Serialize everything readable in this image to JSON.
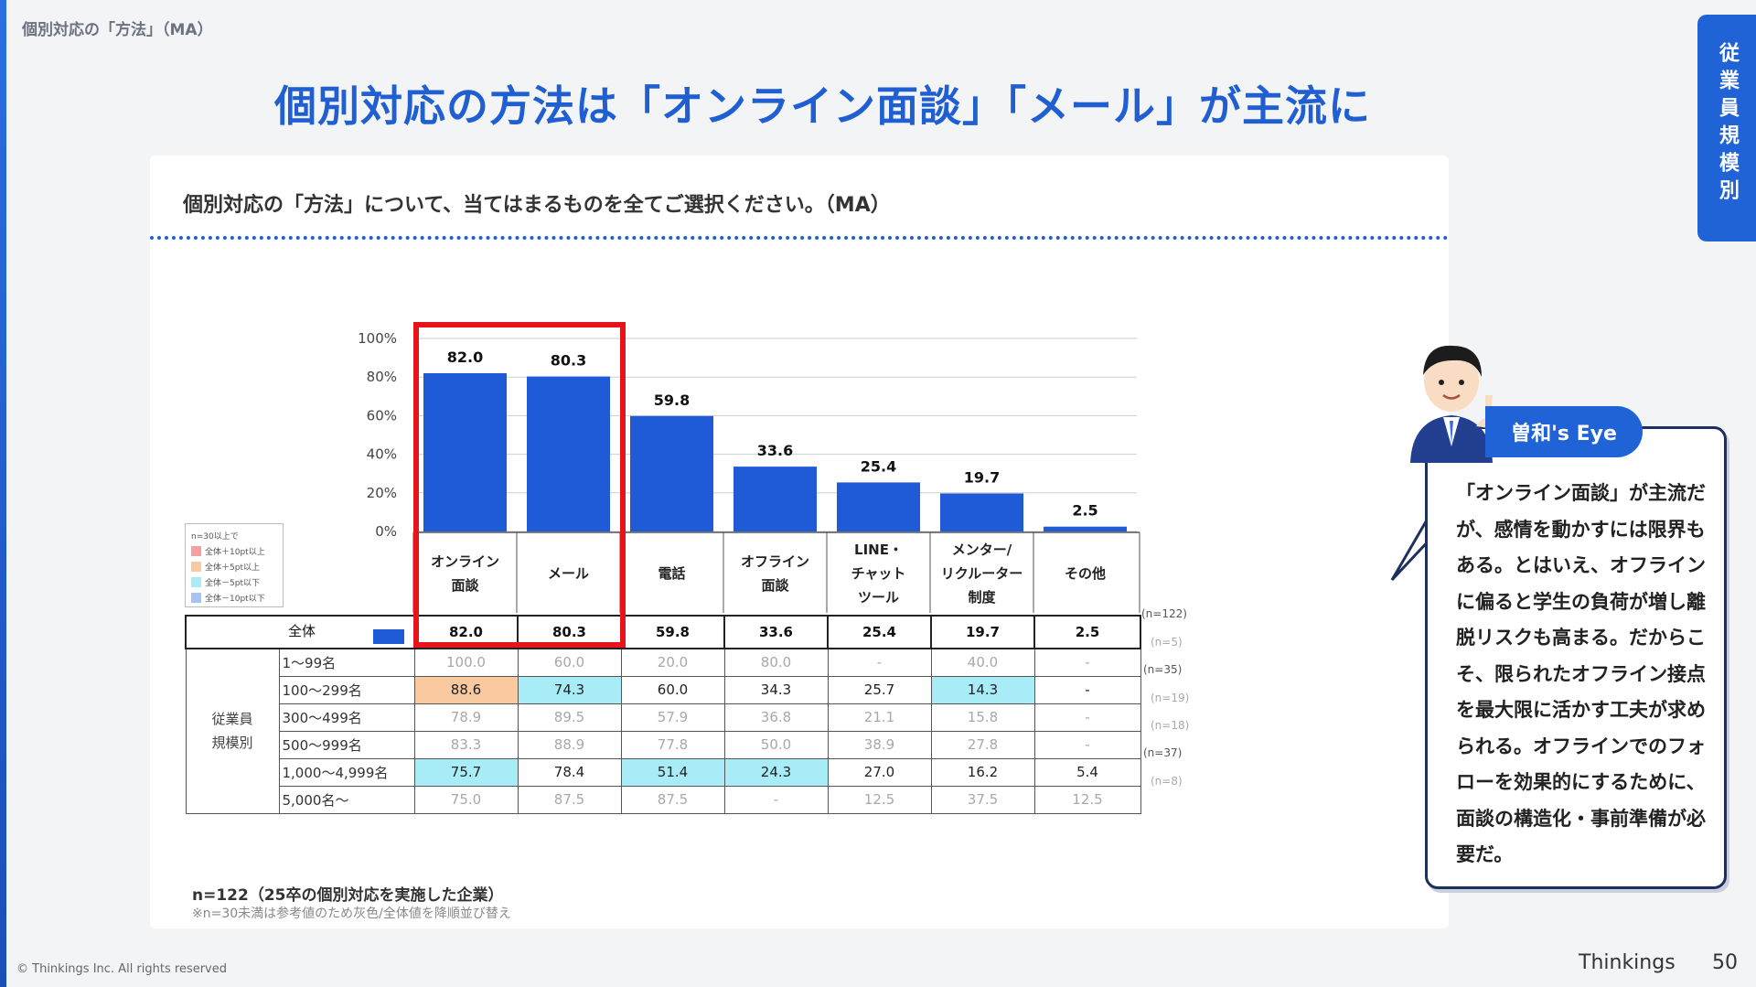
{
  "breadcrumb": "個別対応の「方法」（MA）",
  "headline": "個別対応の方法は「オンライン面談」「メール」が主流に",
  "side_tab": "従業員規模別",
  "question": "個別対応の「方法」について、当てはまるものを全てご選択ください。（MA）",
  "legend": {
    "title": "n=30以上で",
    "items": [
      {
        "label": "全体＋10pt以上",
        "color": "#f4a0a4"
      },
      {
        "label": "全体＋5pt以上",
        "color": "#f9c9a0"
      },
      {
        "label": "全体－5pt以下",
        "color": "#a8ecf7"
      },
      {
        "label": "全体－10pt以下",
        "color": "#a7c4f0"
      }
    ]
  },
  "chart_data": {
    "type": "bar",
    "categories": [
      "オンライン面談",
      "メール",
      "電話",
      "オフライン面談",
      "LINE・チャットツール",
      "メンター/リクルーター制度",
      "その他"
    ],
    "category_lines": [
      [
        "オンライン",
        "面談"
      ],
      [
        "メール"
      ],
      [
        "電話"
      ],
      [
        "オフライン",
        "面談"
      ],
      [
        "LINE・",
        "チャット",
        "ツール"
      ],
      [
        "メンター/",
        "リクルーター",
        "制度"
      ],
      [
        "その他"
      ]
    ],
    "values": [
      82.0,
      80.3,
      59.8,
      33.6,
      25.4,
      19.7,
      2.5
    ],
    "value_labels": [
      "82.0",
      "80.3",
      "59.8",
      "33.6",
      "25.4",
      "19.7",
      "2.5"
    ],
    "ylim": [
      0,
      100
    ],
    "yticks": [
      "0%",
      "20%",
      "40%",
      "60%",
      "80%",
      "100%"
    ],
    "bar_color": "#1f5bd6",
    "grid": true
  },
  "table": {
    "total": {
      "label": "全体",
      "values": [
        "82.0",
        "80.3",
        "59.8",
        "33.6",
        "25.4",
        "19.7",
        "2.5"
      ],
      "n": "(n=122)"
    },
    "group_label_1": "従業員",
    "group_label_2": "規模別",
    "rows": [
      {
        "label": "1〜99名",
        "ref": true,
        "n": "(n=5)",
        "values": [
          "100.0",
          "60.0",
          "20.0",
          "80.0",
          "-",
          "40.0",
          "-"
        ],
        "highlights": [
          "",
          "",
          "",
          "",
          "",
          "",
          ""
        ]
      },
      {
        "label": "100〜299名",
        "ref": false,
        "n": "(n=35)",
        "values": [
          "88.6",
          "74.3",
          "60.0",
          "34.3",
          "25.7",
          "14.3",
          "-"
        ],
        "highlights": [
          "#f9c9a0",
          "#a8ecf7",
          "",
          "",
          "",
          "#a8ecf7",
          ""
        ]
      },
      {
        "label": "300〜499名",
        "ref": true,
        "n": "(n=19)",
        "values": [
          "78.9",
          "89.5",
          "57.9",
          "36.8",
          "21.1",
          "15.8",
          "-"
        ],
        "highlights": [
          "",
          "",
          "",
          "",
          "",
          "",
          ""
        ]
      },
      {
        "label": "500〜999名",
        "ref": true,
        "n": "(n=18)",
        "values": [
          "83.3",
          "88.9",
          "77.8",
          "50.0",
          "38.9",
          "27.8",
          "-"
        ],
        "highlights": [
          "",
          "",
          "",
          "",
          "",
          "",
          ""
        ]
      },
      {
        "label": "1,000〜4,999名",
        "ref": false,
        "n": "(n=37)",
        "values": [
          "75.7",
          "78.4",
          "51.4",
          "24.3",
          "27.0",
          "16.2",
          "5.4"
        ],
        "highlights": [
          "#a8ecf7",
          "",
          "#a8ecf7",
          "#a8ecf7",
          "",
          "",
          ""
        ]
      },
      {
        "label": "5,000名〜",
        "ref": true,
        "n": "(n=8)",
        "values": [
          "75.0",
          "87.5",
          "87.5",
          "-",
          "12.5",
          "37.5",
          "12.5"
        ],
        "highlights": [
          "",
          "",
          "",
          "",
          "",
          "",
          ""
        ]
      }
    ]
  },
  "note_n": "n=122（25卒の個別対応を実施した企業）",
  "note_ref": "※n=30未満は参考値のため灰色/全体値を降順並び替え",
  "eye": {
    "badge": "曽和's Eye",
    "text": "「オンライン面談」が主流だが、感情を動かすには限界もある。とはいえ、オフラインに偏ると学生の負荷が増し離脱リスクも高まる。だからこそ、限られたオフライン接点を最大限に活かす工夫が求められる。オフラインでのフォローを効果的にするために、面談の構造化・事前準備が必要だ。"
  },
  "footer": {
    "copyright": "© Thinkings Inc. All rights reserved",
    "brand": "Thinkings",
    "page": "50"
  }
}
